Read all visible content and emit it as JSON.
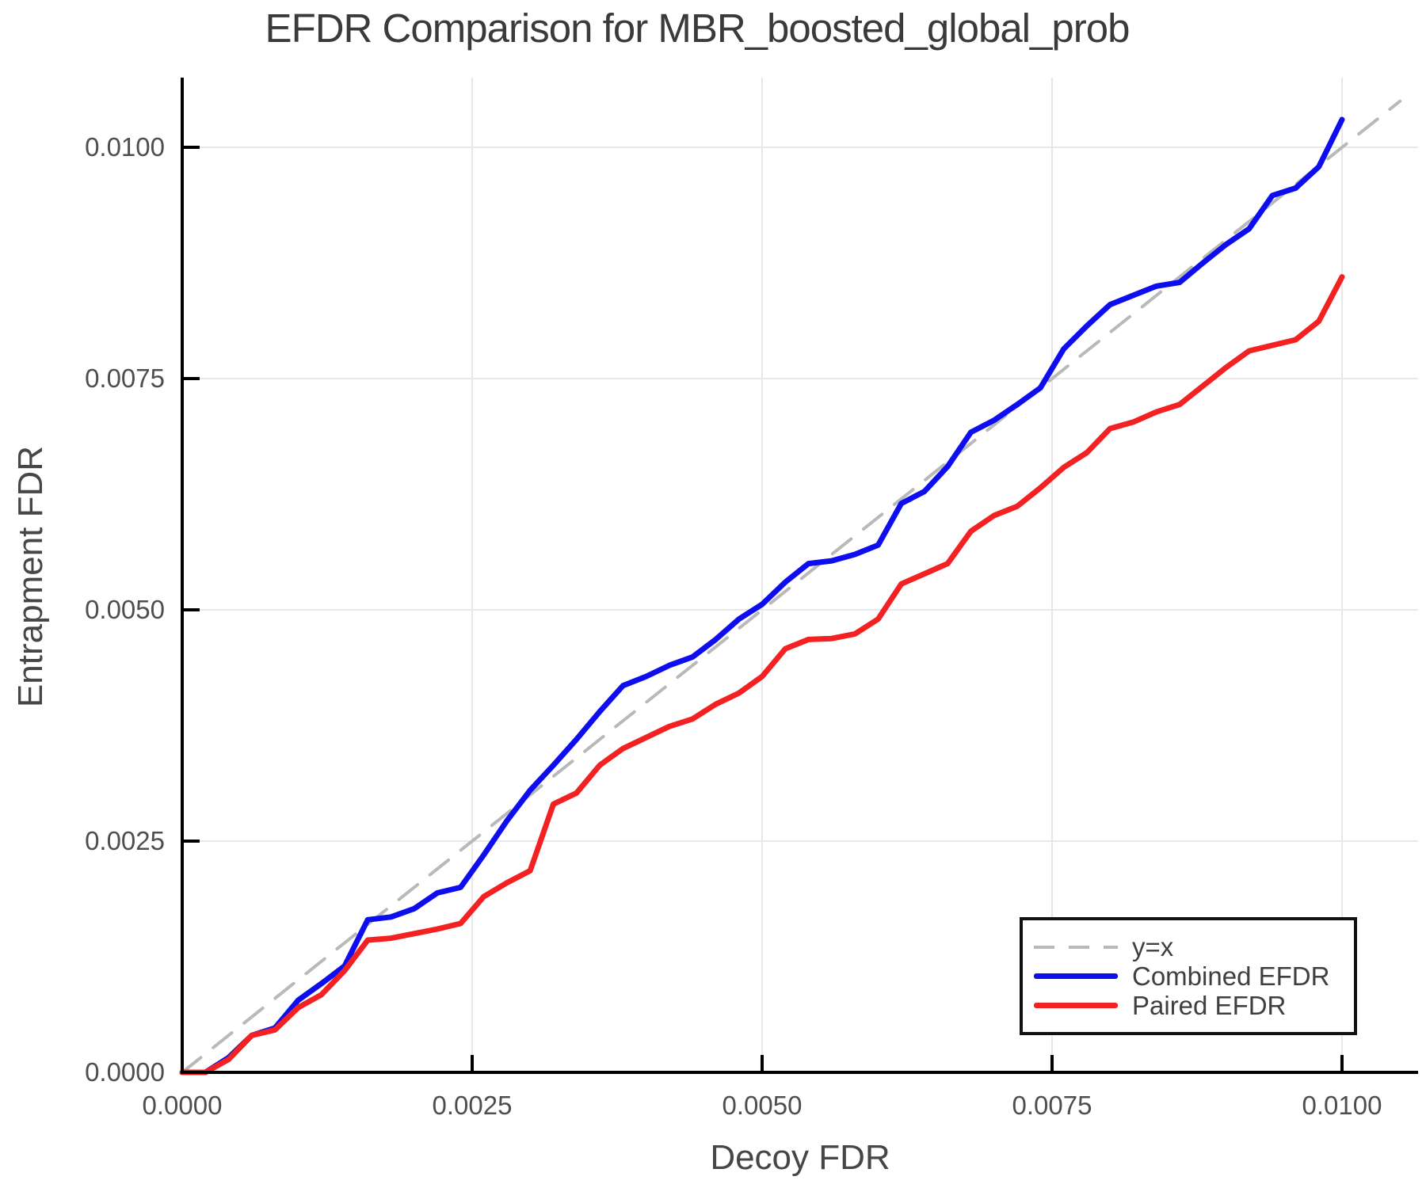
{
  "title": "EFDR Comparison for MBR_boosted_global_prob",
  "colors": {
    "background": "#ffffff",
    "axis": "#000000",
    "grid": "#e8e8e8",
    "title_text": "#3a3a3a",
    "tick_text": "#4e4e4e",
    "axis_label_text": "#464646",
    "legend_border": "#111111",
    "identity_line": "#b9b9b9",
    "combined_line": "#0d0df0",
    "paired_line": "#f32121"
  },
  "chart_data": {
    "type": "line",
    "title": "EFDR Comparison for MBR_boosted_global_prob",
    "xlabel": "Decoy FDR",
    "ylabel": "Entrapment FDR",
    "xlim": [
      0,
      0.010656
    ],
    "ylim": [
      0,
      0.010754
    ],
    "grid": true,
    "legend_position": "bottom-right",
    "x_ticks": {
      "values": [
        0,
        0.0025,
        0.005,
        0.0075,
        0.01
      ],
      "labels": [
        "0.0000",
        "0.0025",
        "0.0050",
        "0.0075",
        "0.0100"
      ]
    },
    "y_ticks": {
      "values": [
        0,
        0.0025,
        0.005,
        0.0075,
        0.01
      ],
      "labels": [
        "0.0000",
        "0.0025",
        "0.0050",
        "0.0075",
        "0.0100"
      ]
    },
    "series": [
      {
        "name": "y=x",
        "style": "dashed",
        "color": "#b9b9b9",
        "width": 4,
        "x": [
          0,
          0.0105
        ],
        "y": [
          0,
          0.0105
        ]
      },
      {
        "name": "Combined EFDR",
        "style": "solid",
        "color": "#0d0df0",
        "width": 7,
        "x": [
          0,
          0.0002,
          0.0004,
          0.0006,
          0.0008,
          0.001,
          0.0012,
          0.0014,
          0.0016,
          0.0018,
          0.002,
          0.0022,
          0.0024,
          0.0026,
          0.0028,
          0.003,
          0.0032,
          0.0034,
          0.0036,
          0.0038,
          0.004,
          0.0042,
          0.0044,
          0.0046,
          0.0048,
          0.005,
          0.0052,
          0.0054,
          0.0056,
          0.0058,
          0.006,
          0.0062,
          0.0064,
          0.0066,
          0.0068,
          0.007,
          0.0072,
          0.0074,
          0.0076,
          0.0078,
          0.008,
          0.0082,
          0.0084,
          0.0086,
          0.0088,
          0.009,
          0.0092,
          0.0094,
          0.0096,
          0.0098,
          0.01
        ],
        "y": [
          0,
          0,
          0.00016,
          0.0004,
          0.00048,
          0.00078,
          0.00096,
          0.00115,
          0.00165,
          0.00168,
          0.00177,
          0.00194,
          0.002,
          0.00235,
          0.00272,
          0.00305,
          0.00332,
          0.0036,
          0.0039,
          0.00418,
          0.00428,
          0.0044,
          0.00449,
          0.00468,
          0.0049,
          0.00506,
          0.0053,
          0.0055,
          0.00553,
          0.0056,
          0.0057,
          0.00615,
          0.00628,
          0.00655,
          0.00692,
          0.00705,
          0.00722,
          0.0074,
          0.00782,
          0.00807,
          0.0083,
          0.0084,
          0.0085,
          0.00854,
          0.00875,
          0.00895,
          0.00912,
          0.00948,
          0.00956,
          0.00979,
          0.0103
        ]
      },
      {
        "name": "Paired EFDR",
        "style": "solid",
        "color": "#f32121",
        "width": 7,
        "x": [
          0,
          0.0002,
          0.0004,
          0.0006,
          0.0008,
          0.001,
          0.0012,
          0.0014,
          0.0016,
          0.0018,
          0.002,
          0.0022,
          0.0024,
          0.0026,
          0.0028,
          0.003,
          0.0032,
          0.0034,
          0.0036,
          0.0038,
          0.004,
          0.0042,
          0.0044,
          0.0046,
          0.0048,
          0.005,
          0.0052,
          0.0054,
          0.0056,
          0.0058,
          0.006,
          0.0062,
          0.0064,
          0.0066,
          0.0068,
          0.007,
          0.0072,
          0.0074,
          0.0076,
          0.0078,
          0.008,
          0.0082,
          0.0084,
          0.0086,
          0.0088,
          0.009,
          0.0092,
          0.0094,
          0.0096,
          0.0098,
          0.01
        ],
        "y": [
          0,
          0,
          0.00014,
          0.0004,
          0.00046,
          0.0007,
          0.00084,
          0.0011,
          0.00143,
          0.00145,
          0.0015,
          0.00155,
          0.00161,
          0.0019,
          0.00205,
          0.00218,
          0.0029,
          0.00302,
          0.00332,
          0.0035,
          0.00362,
          0.00374,
          0.00382,
          0.00398,
          0.0041,
          0.00428,
          0.00458,
          0.00468,
          0.00469,
          0.00474,
          0.0049,
          0.00528,
          0.00539,
          0.0055,
          0.00585,
          0.00602,
          0.00612,
          0.00632,
          0.00654,
          0.0067,
          0.00696,
          0.00703,
          0.00714,
          0.00722,
          0.00742,
          0.00762,
          0.0078,
          0.00786,
          0.00792,
          0.00812,
          0.0086
        ]
      }
    ]
  }
}
